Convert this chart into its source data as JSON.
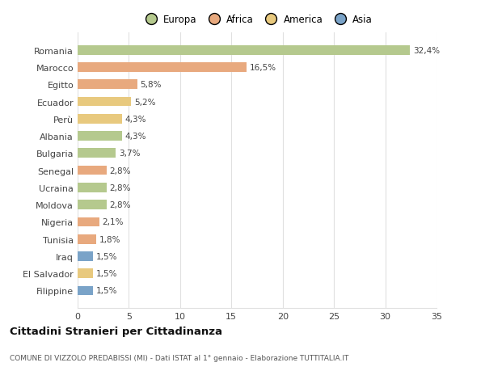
{
  "countries": [
    "Romania",
    "Marocco",
    "Egitto",
    "Ecuador",
    "Perù",
    "Albania",
    "Bulgaria",
    "Senegal",
    "Ucraina",
    "Moldova",
    "Nigeria",
    "Tunisia",
    "Iraq",
    "El Salvador",
    "Filippine"
  ],
  "values": [
    32.4,
    16.5,
    5.8,
    5.2,
    4.3,
    4.3,
    3.7,
    2.8,
    2.8,
    2.8,
    2.1,
    1.8,
    1.5,
    1.5,
    1.5
  ],
  "labels": [
    "32,4%",
    "16,5%",
    "5,8%",
    "5,2%",
    "4,3%",
    "4,3%",
    "3,7%",
    "2,8%",
    "2,8%",
    "2,8%",
    "2,1%",
    "1,8%",
    "1,5%",
    "1,5%",
    "1,5%"
  ],
  "colors": [
    "#b5c98e",
    "#e8a97e",
    "#e8a97e",
    "#e8c97e",
    "#e8c97e",
    "#b5c98e",
    "#b5c98e",
    "#e8a97e",
    "#b5c98e",
    "#b5c98e",
    "#e8a97e",
    "#e8a97e",
    "#7aa3c8",
    "#e8c97e",
    "#7aa3c8"
  ],
  "legend_labels": [
    "Europa",
    "Africa",
    "America",
    "Asia"
  ],
  "legend_colors": [
    "#b5c98e",
    "#e8a97e",
    "#e8c97e",
    "#7aa3c8"
  ],
  "title": "Cittadini Stranieri per Cittadinanza",
  "subtitle": "COMUNE DI VIZZOLO PREDABISSI (MI) - Dati ISTAT al 1° gennaio - Elaborazione TUTTITALIA.IT",
  "xlim": [
    0,
    35
  ],
  "xticks": [
    0,
    5,
    10,
    15,
    20,
    25,
    30,
    35
  ],
  "background_color": "#ffffff",
  "grid_color": "#e0e0e0",
  "bar_height": 0.55
}
